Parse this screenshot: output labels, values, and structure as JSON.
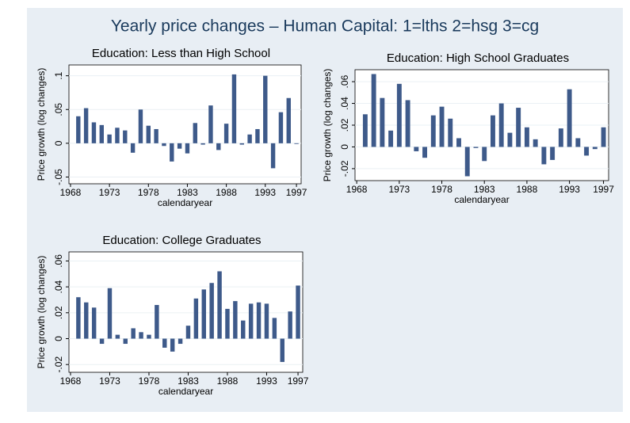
{
  "title": "Yearly price changes – Human Capital: 1=lths 2=hsg 3=cg",
  "chart_data": [
    {
      "type": "bar",
      "title": "Education: Less than High School",
      "xlabel": "calendaryear",
      "ylabel": "Price growth (log changes)",
      "color": "#3e5a8a",
      "grid": true,
      "x": [
        1969,
        1970,
        1971,
        1972,
        1973,
        1974,
        1975,
        1976,
        1977,
        1978,
        1979,
        1980,
        1981,
        1982,
        1983,
        1984,
        1985,
        1986,
        1987,
        1988,
        1989,
        1990,
        1991,
        1992,
        1993,
        1994,
        1995,
        1996,
        1997
      ],
      "values": [
        0.04,
        0.052,
        0.031,
        0.027,
        0.013,
        0.023,
        0.019,
        -0.014,
        0.05,
        0.026,
        0.021,
        -0.004,
        -0.027,
        -0.008,
        -0.015,
        0.03,
        -0.002,
        0.056,
        -0.01,
        0.029,
        0.102,
        -0.002,
        0.013,
        0.021,
        0.1,
        -0.037,
        0.046,
        0.067,
        -0.001
      ],
      "xlim": [
        1967.8,
        1997.6
      ],
      "ylim": [
        -0.06,
        0.116
      ],
      "xticks": [
        1968,
        1973,
        1978,
        1983,
        1988,
        1993,
        1997
      ],
      "yticks": [
        {
          "value": -0.05,
          "label": "-.05"
        },
        0,
        {
          "value": 0.05,
          "label": ".05"
        },
        {
          "value": 0.1,
          "label": ".1"
        }
      ]
    },
    {
      "type": "bar",
      "title": "Education: High School Graduates",
      "xlabel": "calendaryear",
      "ylabel": "Price growth (log changes)",
      "color": "#3e5a8a",
      "grid": true,
      "x": [
        1969,
        1970,
        1971,
        1972,
        1973,
        1974,
        1975,
        1976,
        1977,
        1978,
        1979,
        1980,
        1981,
        1982,
        1983,
        1984,
        1985,
        1986,
        1987,
        1988,
        1989,
        1990,
        1991,
        1992,
        1993,
        1994,
        1995,
        1996,
        1997
      ],
      "values": [
        0.03,
        0.067,
        0.045,
        0.015,
        0.058,
        0.043,
        -0.004,
        -0.01,
        0.029,
        0.037,
        0.026,
        0.008,
        -0.027,
        -0.001,
        -0.013,
        0.029,
        0.04,
        0.013,
        0.036,
        0.018,
        0.007,
        -0.016,
        -0.012,
        0.017,
        0.053,
        0.008,
        -0.008,
        -0.002,
        0.018
      ],
      "xlim": [
        1967.8,
        1997.6
      ],
      "ylim": [
        -0.031,
        0.071
      ],
      "xticks": [
        1968,
        1973,
        1978,
        1983,
        1988,
        1993,
        1997
      ],
      "yticks": [
        {
          "value": -0.02,
          "label": "-.02"
        },
        0,
        {
          "value": 0.02,
          "label": ".02"
        },
        {
          "value": 0.04,
          "label": ".04"
        },
        {
          "value": 0.06,
          "label": ".06"
        }
      ]
    },
    {
      "type": "bar",
      "title": "Education: College Graduates",
      "xlabel": "calendaryear",
      "ylabel": "Price growth (log changes)",
      "color": "#3e5a8a",
      "grid": true,
      "x": [
        1969,
        1970,
        1971,
        1972,
        1973,
        1974,
        1975,
        1976,
        1977,
        1978,
        1979,
        1980,
        1981,
        1982,
        1983,
        1984,
        1985,
        1986,
        1987,
        1988,
        1989,
        1990,
        1991,
        1992,
        1993,
        1994,
        1995,
        1996,
        1997
      ],
      "values": [
        0.032,
        0.028,
        0.024,
        -0.004,
        0.039,
        0.003,
        -0.004,
        0.008,
        0.005,
        0.003,
        0.026,
        -0.007,
        -0.01,
        -0.004,
        0.01,
        0.031,
        0.038,
        0.043,
        0.052,
        0.023,
        0.029,
        0.014,
        0.027,
        0.028,
        0.027,
        0.016,
        -0.018,
        0.021,
        0.041
      ],
      "xlim": [
        1967.8,
        1997.6
      ],
      "ylim": [
        -0.026,
        0.067
      ],
      "xticks": [
        1968,
        1973,
        1978,
        1983,
        1988,
        1993,
        1997
      ],
      "yticks": [
        {
          "value": -0.02,
          "label": "-.02"
        },
        0,
        {
          "value": 0.02,
          "label": ".02"
        },
        {
          "value": 0.04,
          "label": ".04"
        },
        {
          "value": 0.06,
          "label": ".06"
        }
      ]
    }
  ]
}
